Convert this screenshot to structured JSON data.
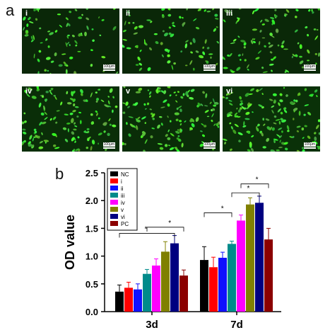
{
  "figure": {
    "panel_a_label": "a",
    "panel_b_label": "b",
    "micrographs": [
      {
        "label": "i",
        "scale_text": "100μm",
        "density": 0.35,
        "brightness": 0.55
      },
      {
        "label": "ii",
        "scale_text": "100μm",
        "density": 0.4,
        "brightness": 0.55
      },
      {
        "label": "iii",
        "scale_text": "100μm",
        "density": 0.5,
        "brightness": 0.6
      },
      {
        "label": "iv",
        "scale_text": "100μm",
        "density": 0.85,
        "brightness": 0.85
      },
      {
        "label": "v",
        "scale_text": "100μm",
        "density": 0.8,
        "brightness": 0.8
      },
      {
        "label": "vi",
        "scale_text": "100μm",
        "density": 0.95,
        "brightness": 0.95
      }
    ]
  },
  "chart_data": {
    "type": "bar",
    "title": "",
    "xlabel": "",
    "ylabel": "OD value",
    "ylim": [
      0,
      2.5
    ],
    "yticks": [
      "0.0",
      "0.5",
      "1.0",
      "1.5",
      "2.0",
      "2.5"
    ],
    "categories": [
      "3d",
      "7d"
    ],
    "series": [
      {
        "name": "NC",
        "color": "#000000",
        "values": [
          0.36,
          0.93
        ],
        "errors": [
          0.12,
          0.24
        ]
      },
      {
        "name": "i",
        "color": "#ff0000",
        "values": [
          0.43,
          0.8
        ],
        "errors": [
          0.1,
          0.18
        ]
      },
      {
        "name": "ii",
        "color": "#1010ff",
        "values": [
          0.4,
          0.97
        ],
        "errors": [
          0.1,
          0.1
        ]
      },
      {
        "name": "iii",
        "color": "#008b8b",
        "values": [
          0.68,
          1.22
        ],
        "errors": [
          0.08,
          0.05
        ]
      },
      {
        "name": "iv",
        "color": "#ff00ff",
        "values": [
          0.83,
          1.64
        ],
        "errors": [
          0.12,
          0.1
        ]
      },
      {
        "name": "v",
        "color": "#808000",
        "values": [
          1.08,
          1.93
        ],
        "errors": [
          0.18,
          0.12
        ]
      },
      {
        "name": "vi",
        "color": "#000080",
        "values": [
          1.23,
          1.96
        ],
        "errors": [
          0.14,
          0.12
        ]
      },
      {
        "name": "PC",
        "color": "#8b0000",
        "values": [
          0.65,
          1.3
        ],
        "errors": [
          0.1,
          0.2
        ]
      }
    ],
    "significance_marker": "*",
    "legend_position": "top-left"
  }
}
